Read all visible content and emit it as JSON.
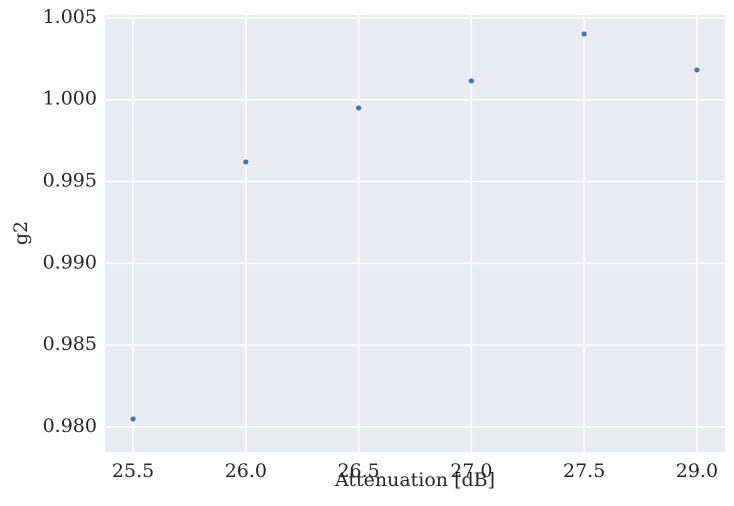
{
  "chart_data": {
    "type": "scatter",
    "x_label": "Attenuation [dB]",
    "y_label": "g2",
    "categories": [
      "25.5",
      "26.0",
      "26.5",
      "27.0",
      "27.5",
      "29.0"
    ],
    "values": [
      0.98049,
      0.9962,
      0.9995,
      1.00115,
      1.00402,
      1.00182
    ],
    "color": "#4c72b0",
    "ylim": [
      0.97847,
      1.00518
    ],
    "yticks": [
      {
        "value": 0.98,
        "label": "0.980"
      },
      0.985,
      {
        "value": 0.99,
        "label": "0.990"
      },
      0.995,
      {
        "value": 1,
        "label": "1.000"
      },
      1.005
    ],
    "grid": true
  }
}
